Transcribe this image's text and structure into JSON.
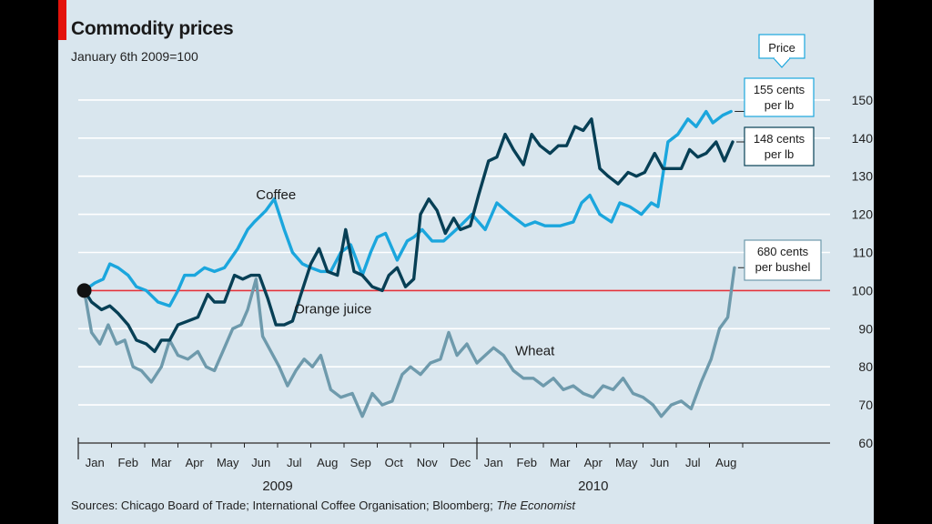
{
  "header": {
    "title": "Commodity prices",
    "subtitle": "January 6th 2009=100"
  },
  "footer": {
    "source_prefix": "Sources: Chicago Board of Trade; International Coffee Organisation; Bloomberg; ",
    "source_italic": "The Economist"
  },
  "colors": {
    "background": "#d9e6ee",
    "coffee": "#1ba6dd",
    "orange_juice": "#073f55",
    "wheat": "#6e9aac",
    "baseline": "#e3323a",
    "accent_red": "#e3120b"
  },
  "chart_data": {
    "type": "line",
    "title": "Commodity prices",
    "subtitle": "January 6th 2009=100",
    "ylim": [
      60,
      150
    ],
    "yticks": [
      60,
      70,
      80,
      90,
      100,
      110,
      120,
      130,
      140,
      150
    ],
    "y_axis_side": "right",
    "grid": true,
    "reference_line": 100,
    "x_tick_labels": [
      "Jan",
      "Feb",
      "Mar",
      "Apr",
      "May",
      "Jun",
      "Jul",
      "Aug",
      "Sep",
      "Oct",
      "Nov",
      "Dec",
      "Jan",
      "Feb",
      "Mar",
      "Apr",
      "May",
      "Jun",
      "Jul",
      "Aug"
    ],
    "x_tick_positions": [
      0.5,
      1.5,
      2.5,
      3.5,
      4.5,
      5.5,
      6.5,
      7.5,
      8.5,
      9.5,
      10.5,
      11.5,
      12.5,
      13.5,
      14.5,
      15.5,
      16.5,
      17.5,
      18.5,
      19.5
    ],
    "years": [
      {
        "label": "2009",
        "x": 6
      },
      {
        "label": "2010",
        "x": 15.5
      }
    ],
    "year_divider_x": 12,
    "xlim": [
      0,
      21
    ],
    "series_label_title": "Price",
    "series": [
      {
        "name": "Coffee",
        "label_at": [
          5.35,
          124
        ],
        "end_label": [
          "155 cents",
          "per lb"
        ],
        "x": [
          0.18,
          0.5,
          0.75,
          0.95,
          1.2,
          1.5,
          1.75,
          2.05,
          2.4,
          2.75,
          3.0,
          3.2,
          3.5,
          3.8,
          4.1,
          4.4,
          4.8,
          5.1,
          5.3,
          5.65,
          5.9,
          6.2,
          6.45,
          6.75,
          7.0,
          7.3,
          7.6,
          7.9,
          8.2,
          8.55,
          8.8,
          9.0,
          9.25,
          9.6,
          9.9,
          10.1,
          10.35,
          10.65,
          11.0,
          11.5,
          11.85,
          12.25,
          12.6,
          13.0,
          13.45,
          13.75,
          14.05,
          14.5,
          14.9,
          15.15,
          15.4,
          15.7,
          16.05,
          16.3,
          16.6,
          16.95,
          17.25,
          17.45,
          17.75,
          18.05,
          18.35,
          18.6,
          18.9,
          19.1,
          19.4,
          19.65
        ],
        "y": [
          100,
          102,
          103,
          107,
          106,
          104,
          101,
          100,
          97,
          96,
          100,
          104,
          104,
          106,
          105,
          106,
          111,
          116,
          118,
          121,
          124,
          116,
          110,
          107,
          106,
          105,
          105,
          110,
          112,
          104,
          110,
          114,
          115,
          108,
          113,
          114,
          116,
          113,
          113,
          117,
          120,
          116,
          123,
          120,
          117,
          118,
          117,
          117,
          118,
          123,
          125,
          120,
          118,
          123,
          122,
          120,
          123,
          122,
          139,
          141,
          145,
          143,
          147,
          144,
          146,
          147
        ]
      },
      {
        "name": "Orange juice",
        "label_at": [
          6.5,
          94
        ],
        "end_label": [
          "148 cents",
          "per lb"
        ],
        "x": [
          0.18,
          0.4,
          0.7,
          0.95,
          1.2,
          1.5,
          1.75,
          2.05,
          2.3,
          2.5,
          2.75,
          3.0,
          3.3,
          3.6,
          3.9,
          4.1,
          4.4,
          4.7,
          4.95,
          5.2,
          5.45,
          5.7,
          5.95,
          6.2,
          6.45,
          6.7,
          7.0,
          7.25,
          7.5,
          7.8,
          8.05,
          8.3,
          8.55,
          8.85,
          9.15,
          9.35,
          9.6,
          9.85,
          10.1,
          10.3,
          10.55,
          10.8,
          11.05,
          11.3,
          11.5,
          11.8,
          12.05,
          12.35,
          12.6,
          12.85,
          13.1,
          13.4,
          13.65,
          13.9,
          14.2,
          14.45,
          14.7,
          14.95,
          15.2,
          15.45,
          15.7,
          15.95,
          16.25,
          16.55,
          16.8,
          17.05,
          17.35,
          17.6,
          17.9,
          18.15,
          18.4,
          18.65,
          18.9,
          19.2,
          19.45,
          19.7
        ],
        "y": [
          100,
          97,
          95,
          96,
          94,
          91,
          87,
          86,
          84,
          87,
          87,
          91,
          92,
          93,
          99,
          97,
          97,
          104,
          103,
          104,
          104,
          98,
          91,
          91,
          92,
          99,
          107,
          111,
          105,
          104,
          116,
          105,
          104,
          101,
          100,
          104,
          106,
          101,
          103,
          120,
          124,
          121,
          115,
          119,
          116,
          117,
          125,
          134,
          135,
          141,
          137,
          133,
          141,
          138,
          136,
          138,
          138,
          143,
          142,
          145,
          132,
          130,
          128,
          131,
          130,
          131,
          136,
          132,
          132,
          132,
          137,
          135,
          136,
          139,
          134,
          139
        ]
      },
      {
        "name": "Wheat",
        "label_at": [
          13.15,
          83
        ],
        "end_label": [
          "680 cents",
          "per bushel"
        ],
        "x": [
          0.18,
          0.4,
          0.65,
          0.9,
          1.15,
          1.4,
          1.65,
          1.9,
          2.2,
          2.5,
          2.75,
          3.0,
          3.3,
          3.6,
          3.85,
          4.1,
          4.35,
          4.65,
          4.9,
          5.1,
          5.35,
          5.55,
          5.8,
          6.05,
          6.3,
          6.55,
          6.8,
          7.05,
          7.3,
          7.6,
          7.9,
          8.25,
          8.55,
          8.85,
          9.15,
          9.45,
          9.75,
          10.0,
          10.3,
          10.6,
          10.9,
          11.15,
          11.4,
          11.7,
          12.0,
          12.25,
          12.5,
          12.8,
          13.1,
          13.4,
          13.7,
          14.0,
          14.3,
          14.6,
          14.9,
          15.2,
          15.5,
          15.8,
          16.1,
          16.4,
          16.7,
          17.0,
          17.3,
          17.55,
          17.85,
          18.15,
          18.45,
          18.75,
          19.05,
          19.3,
          19.55,
          19.75
        ],
        "y": [
          100,
          89,
          86,
          91,
          86,
          87,
          80,
          79,
          76,
          80,
          87,
          83,
          82,
          84,
          80,
          79,
          84,
          90,
          91,
          95,
          103,
          88,
          84,
          80,
          75,
          79,
          82,
          80,
          83,
          74,
          72,
          73,
          67,
          73,
          70,
          71,
          78,
          80,
          78,
          81,
          82,
          89,
          83,
          86,
          81,
          83,
          85,
          83,
          79,
          77,
          77,
          75,
          77,
          74,
          75,
          73,
          72,
          75,
          74,
          77,
          73,
          72,
          70,
          67,
          70,
          71,
          69,
          76,
          82,
          90,
          93,
          106
        ]
      }
    ]
  }
}
